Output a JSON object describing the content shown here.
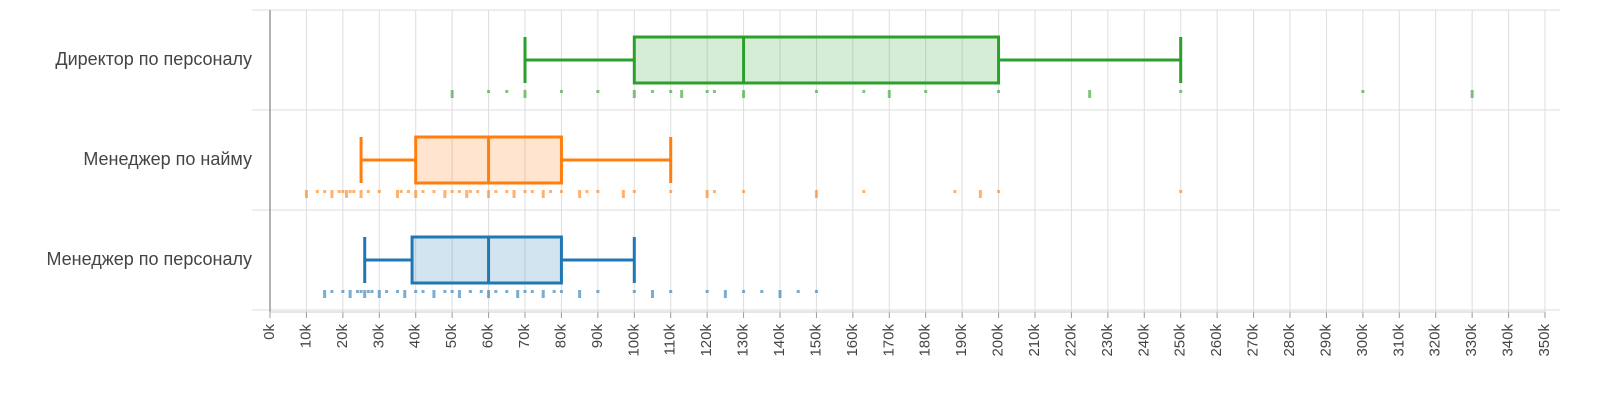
{
  "chart_data": {
    "type": "boxplot",
    "xlim": [
      0,
      350000
    ],
    "xticks": [
      {
        "value": 0,
        "label": "0k"
      },
      {
        "value": 10000,
        "label": "10k"
      },
      {
        "value": 20000,
        "label": "20k"
      },
      {
        "value": 30000,
        "label": "30k"
      },
      {
        "value": 40000,
        "label": "40k"
      },
      {
        "value": 50000,
        "label": "50k"
      },
      {
        "value": 60000,
        "label": "60k"
      },
      {
        "value": 70000,
        "label": "70k"
      },
      {
        "value": 80000,
        "label": "80k"
      },
      {
        "value": 90000,
        "label": "90k"
      },
      {
        "value": 100000,
        "label": "100k"
      },
      {
        "value": 110000,
        "label": "110k"
      },
      {
        "value": 120000,
        "label": "120k"
      },
      {
        "value": 130000,
        "label": "130k"
      },
      {
        "value": 140000,
        "label": "140k"
      },
      {
        "value": 150000,
        "label": "150k"
      },
      {
        "value": 160000,
        "label": "160k"
      },
      {
        "value": 170000,
        "label": "170k"
      },
      {
        "value": 180000,
        "label": "180k"
      },
      {
        "value": 190000,
        "label": "190k"
      },
      {
        "value": 200000,
        "label": "200k"
      },
      {
        "value": 210000,
        "label": "210k"
      },
      {
        "value": 220000,
        "label": "220k"
      },
      {
        "value": 230000,
        "label": "230k"
      },
      {
        "value": 240000,
        "label": "240k"
      },
      {
        "value": 250000,
        "label": "250k"
      },
      {
        "value": 260000,
        "label": "260k"
      },
      {
        "value": 270000,
        "label": "270k"
      },
      {
        "value": 280000,
        "label": "280k"
      },
      {
        "value": 290000,
        "label": "290k"
      },
      {
        "value": 300000,
        "label": "300k"
      },
      {
        "value": 310000,
        "label": "310k"
      },
      {
        "value": 320000,
        "label": "320k"
      },
      {
        "value": 330000,
        "label": "330k"
      },
      {
        "value": 340000,
        "label": "340k"
      },
      {
        "value": 350000,
        "label": "350k"
      }
    ],
    "grid": true,
    "series": [
      {
        "name": "Директор по персоналу",
        "color": "#2ca02c",
        "whisker_low": 70000,
        "q1": 100000,
        "median": 130000,
        "q3": 200000,
        "whisker_high": 250000,
        "points": [
          50000,
          60000,
          65000,
          70000,
          80000,
          90000,
          100000,
          105000,
          110000,
          113000,
          120000,
          122000,
          130000,
          150000,
          163000,
          170000,
          180000,
          200000,
          225000,
          250000,
          300000,
          330000
        ]
      },
      {
        "name": "Менеджер по найму",
        "color": "#ff7f0e",
        "whisker_low": 25000,
        "q1": 40000,
        "median": 60000,
        "q3": 80000,
        "whisker_high": 110000,
        "points": [
          10000,
          13000,
          15000,
          17000,
          19000,
          20000,
          21000,
          22000,
          23000,
          25000,
          27000,
          30000,
          35000,
          36000,
          38000,
          40000,
          42000,
          45000,
          48000,
          50000,
          52000,
          54000,
          55000,
          57000,
          60000,
          62000,
          65000,
          67000,
          70000,
          72000,
          75000,
          77000,
          80000,
          85000,
          87000,
          90000,
          97000,
          100000,
          110000,
          120000,
          122000,
          130000,
          150000,
          163000,
          188000,
          195000,
          200000,
          250000
        ]
      },
      {
        "name": "Менеджер по персоналу",
        "color": "#1f77b4",
        "whisker_low": 26000,
        "q1": 39000,
        "median": 60000,
        "q3": 80000,
        "whisker_high": 100000,
        "points": [
          15000,
          17000,
          20000,
          22000,
          24000,
          25000,
          26000,
          27000,
          28000,
          30000,
          32000,
          35000,
          37000,
          40000,
          42000,
          45000,
          48000,
          50000,
          52000,
          55000,
          58000,
          60000,
          62000,
          65000,
          68000,
          70000,
          72000,
          75000,
          78000,
          80000,
          85000,
          90000,
          100000,
          105000,
          110000,
          120000,
          125000,
          130000,
          135000,
          140000,
          145000,
          150000
        ]
      }
    ]
  }
}
